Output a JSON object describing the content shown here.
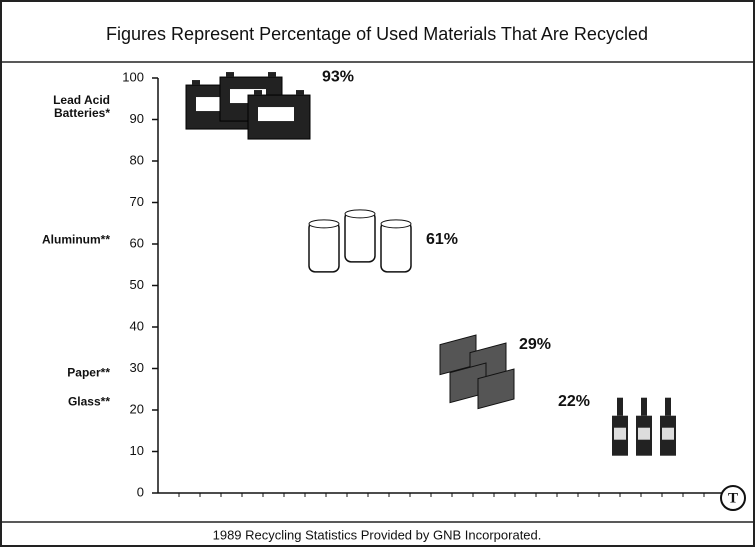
{
  "chart_data": {
    "type": "pictogram",
    "title": "Figures Represent Percentage of Used Materials That Are Recycled",
    "categories": [
      "Lead Acid Batteries*",
      "Aluminum**",
      "Paper**",
      "Glass**"
    ],
    "values": [
      93,
      61,
      29,
      22
    ],
    "value_labels": [
      "93%",
      "61%",
      "29%",
      "22%"
    ],
    "ylim": [
      0,
      100
    ],
    "yticks": [
      0,
      10,
      20,
      30,
      40,
      50,
      60,
      70,
      80,
      90,
      100
    ],
    "footnote": "1989 Recycling Statistics Provided by GNB Incorporated."
  }
}
